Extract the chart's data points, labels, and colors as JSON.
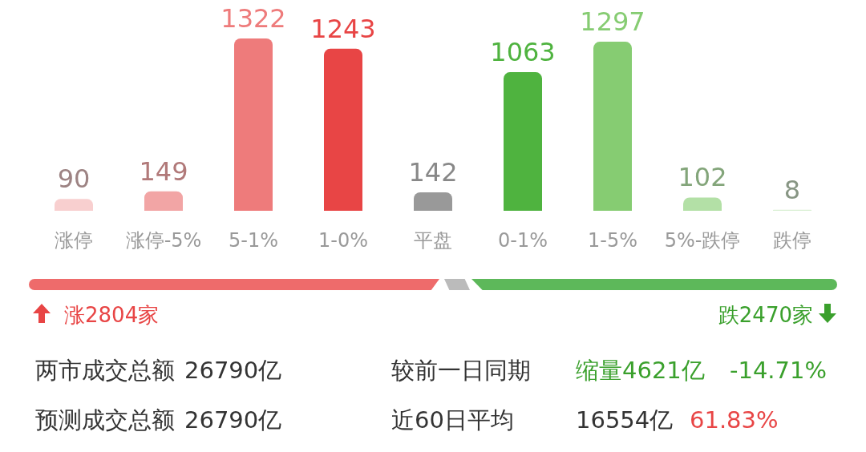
{
  "chart_data": {
    "type": "bar",
    "categories": [
      "涨停",
      "涨停-5%",
      "5-1%",
      "1-0%",
      "平盘",
      "0-1%",
      "1-5%",
      "5%-跌停",
      "跌停"
    ],
    "values": [
      90,
      149,
      1322,
      1243,
      142,
      1063,
      1297,
      102,
      8
    ],
    "colors": [
      "#f8cfcf",
      "#f2a5a5",
      "#ee7b7b",
      "#e84545",
      "#999999",
      "#4fb33f",
      "#86cc72",
      "#b3e0a6",
      "#d9f0d3"
    ],
    "data_labels": true,
    "grid": false,
    "legend": false,
    "annotations": [
      "涨2804家",
      "跌2470家",
      "两市成交总额",
      "26790亿",
      "较前一日同期",
      "缩量4621亿",
      "-14.71%",
      "预测成交总额",
      "26790亿",
      "近60日平均",
      "16554亿",
      "61.83%"
    ]
  }
}
